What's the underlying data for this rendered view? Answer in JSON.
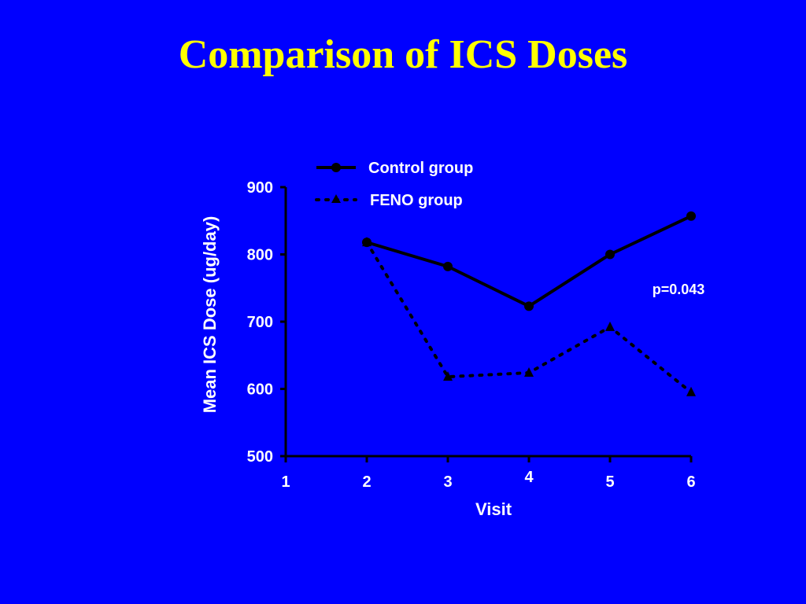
{
  "title": "Comparison of ICS Doses",
  "colors": {
    "background": "#0000ff",
    "title": "#ffff00",
    "foreground": "#ffffff",
    "series": "#000000"
  },
  "chart_data": {
    "type": "line",
    "xlabel": "Visit",
    "ylabel": "Mean ICS Dose (ug/day)",
    "xlim": [
      1,
      6
    ],
    "ylim": [
      500,
      900
    ],
    "x_ticks": [
      "1",
      "2",
      "3",
      "4",
      "5",
      "6"
    ],
    "y_ticks": [
      "500",
      "600",
      "700",
      "800",
      "900"
    ],
    "grid": false,
    "legend_position": "top",
    "series": [
      {
        "name": "Control group",
        "marker": "circle",
        "line_style": "solid",
        "x": [
          2,
          3,
          4,
          5,
          6
        ],
        "values": [
          818,
          782,
          723,
          800,
          857
        ]
      },
      {
        "name": "FENO group",
        "marker": "triangle",
        "line_style": "dotted",
        "x": [
          2,
          3,
          4,
          5,
          6
        ],
        "values": [
          818,
          618,
          624,
          692,
          595
        ]
      }
    ],
    "annotations": [
      "p=0.043"
    ]
  }
}
